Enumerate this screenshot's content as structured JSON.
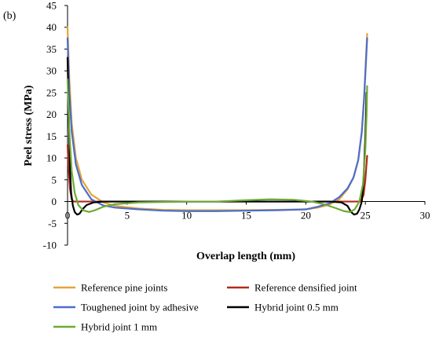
{
  "panel_label": "(b)",
  "chart_data": {
    "type": "line",
    "title": "",
    "xlabel": "Overlap length (mm)",
    "ylabel": "Peel stress (MPa)",
    "xlim": [
      0,
      30
    ],
    "ylim": [
      -10,
      45
    ],
    "xticks": [
      0,
      5,
      10,
      15,
      20,
      25,
      30
    ],
    "yticks": [
      -10,
      -5,
      0,
      5,
      10,
      15,
      20,
      25,
      30,
      35,
      40,
      45
    ],
    "grid": false,
    "legend_position": "bottom",
    "series": [
      {
        "name": "Reference pine joints",
        "color": "#E3A43B",
        "points": [
          [
            0,
            40
          ],
          [
            0.15,
            28
          ],
          [
            0.35,
            18
          ],
          [
            0.7,
            10
          ],
          [
            1.2,
            5
          ],
          [
            2,
            1.6
          ],
          [
            3,
            -0.2
          ],
          [
            4,
            -1
          ],
          [
            6,
            -1.6
          ],
          [
            8,
            -1.9
          ],
          [
            10,
            -2
          ],
          [
            12.5,
            -2
          ],
          [
            15,
            -2
          ],
          [
            17.5,
            -1.9
          ],
          [
            20,
            -1.8
          ],
          [
            21,
            -1.4
          ],
          [
            22,
            -0.7
          ],
          [
            22.8,
            0.5
          ],
          [
            23.5,
            2.8
          ],
          [
            24,
            5.5
          ],
          [
            24.4,
            9.5
          ],
          [
            24.7,
            16
          ],
          [
            24.9,
            24
          ],
          [
            25.05,
            33
          ],
          [
            25.15,
            38.5
          ]
        ]
      },
      {
        "name": "Reference densified joint",
        "color": "#B22A1A",
        "points": [
          [
            0,
            13
          ],
          [
            0.08,
            8
          ],
          [
            0.2,
            3
          ],
          [
            0.35,
            0.5
          ],
          [
            0.5,
            0
          ],
          [
            5,
            0
          ],
          [
            10,
            0
          ],
          [
            15,
            0
          ],
          [
            20,
            0
          ],
          [
            24,
            0
          ],
          [
            24.6,
            0
          ],
          [
            24.85,
            1.5
          ],
          [
            25,
            5
          ],
          [
            25.15,
            10.5
          ]
        ]
      },
      {
        "name": "Toughened joint by adhesive",
        "color": "#4C6DC9",
        "points": [
          [
            0,
            37.5
          ],
          [
            0.15,
            25
          ],
          [
            0.35,
            16
          ],
          [
            0.7,
            8.5
          ],
          [
            1.2,
            3.8
          ],
          [
            2,
            0.5
          ],
          [
            3,
            -0.9
          ],
          [
            4,
            -1.4
          ],
          [
            6,
            -1.8
          ],
          [
            8,
            -2.1
          ],
          [
            10,
            -2.2
          ],
          [
            12.5,
            -2.2
          ],
          [
            15,
            -2.1
          ],
          [
            17.5,
            -2
          ],
          [
            20,
            -1.8
          ],
          [
            21,
            -1.2
          ],
          [
            22,
            -0.4
          ],
          [
            22.8,
            1
          ],
          [
            23.5,
            3
          ],
          [
            24,
            5.5
          ],
          [
            24.4,
            9.5
          ],
          [
            24.7,
            16
          ],
          [
            24.9,
            24
          ],
          [
            25.05,
            32
          ],
          [
            25.15,
            37.5
          ]
        ]
      },
      {
        "name": "Hybrid joint 0.5 mm",
        "color": "#000000",
        "points": [
          [
            0,
            33
          ],
          [
            0.1,
            20
          ],
          [
            0.2,
            8
          ],
          [
            0.3,
            2
          ],
          [
            0.45,
            -1
          ],
          [
            0.6,
            -2.4
          ],
          [
            0.8,
            -3
          ],
          [
            1,
            -2.8
          ],
          [
            1.25,
            -1.8
          ],
          [
            1.6,
            -0.8
          ],
          [
            2.2,
            -0.2
          ],
          [
            3,
            0
          ],
          [
            10,
            0
          ],
          [
            15,
            0
          ],
          [
            20,
            0
          ],
          [
            22,
            0
          ],
          [
            23,
            -0.2
          ],
          [
            23.5,
            -1
          ],
          [
            23.8,
            -2.4
          ],
          [
            24.05,
            -3
          ],
          [
            24.3,
            -2.8
          ],
          [
            24.5,
            -1.8
          ],
          [
            24.7,
            0
          ],
          [
            24.85,
            5
          ],
          [
            25,
            15
          ],
          [
            25.1,
            25
          ]
        ]
      },
      {
        "name": "Hybrid joint 1 mm",
        "color": "#6DAA35",
        "points": [
          [
            0,
            28
          ],
          [
            0.15,
            16
          ],
          [
            0.35,
            7
          ],
          [
            0.6,
            2
          ],
          [
            0.9,
            -0.8
          ],
          [
            1.3,
            -2
          ],
          [
            1.8,
            -2.4
          ],
          [
            2.3,
            -2
          ],
          [
            3,
            -1.2
          ],
          [
            4,
            -0.6
          ],
          [
            6,
            -0.2
          ],
          [
            8,
            -0.1
          ],
          [
            10,
            0
          ],
          [
            12.5,
            0
          ],
          [
            15,
            0.3
          ],
          [
            17,
            0.5
          ],
          [
            19,
            0.4
          ],
          [
            20.5,
            0
          ],
          [
            21.5,
            -0.6
          ],
          [
            22.5,
            -1.5
          ],
          [
            23.2,
            -2.2
          ],
          [
            23.7,
            -2.4
          ],
          [
            24.1,
            -1.8
          ],
          [
            24.5,
            0
          ],
          [
            24.8,
            4
          ],
          [
            25,
            12
          ],
          [
            25.1,
            20
          ],
          [
            25.15,
            26.5
          ]
        ]
      }
    ]
  }
}
